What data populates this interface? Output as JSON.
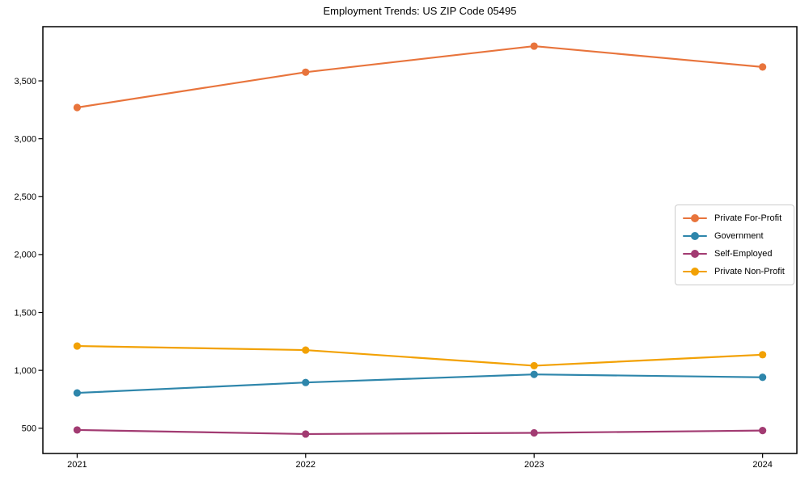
{
  "chart_data": {
    "type": "line",
    "title": "Employment Trends: US ZIP Code 05495",
    "xlabel": "",
    "ylabel": "",
    "x": [
      2021,
      2022,
      2023,
      2024
    ],
    "x_tick_labels": [
      "2021",
      "2022",
      "2023",
      "2024"
    ],
    "series": [
      {
        "name": "Private For-Profit",
        "color": "#E8743C",
        "values": [
          3270,
          3575,
          3800,
          3620
        ]
      },
      {
        "name": "Government",
        "color": "#2E86AB",
        "values": [
          805,
          895,
          965,
          940
        ]
      },
      {
        "name": "Self-Employed",
        "color": "#A23B72",
        "values": [
          485,
          450,
          460,
          480
        ]
      },
      {
        "name": "Private Non-Profit",
        "color": "#F2A104",
        "values": [
          1210,
          1175,
          1040,
          1135
        ]
      }
    ],
    "yticks": [
      500,
      1000,
      1500,
      2000,
      2500,
      3000,
      3500
    ],
    "ytick_format": "thousands-comma",
    "ylim": [
      282,
      3968
    ],
    "xlim": [
      2020.85,
      2024.15
    ],
    "grid": false,
    "legend_position": "right-middle",
    "marker": "circle",
    "line_width": 2.2,
    "axis_color": "#000000",
    "text_color": "#000000",
    "legend_border_color": "#cccccc",
    "background_color": "#ffffff"
  }
}
